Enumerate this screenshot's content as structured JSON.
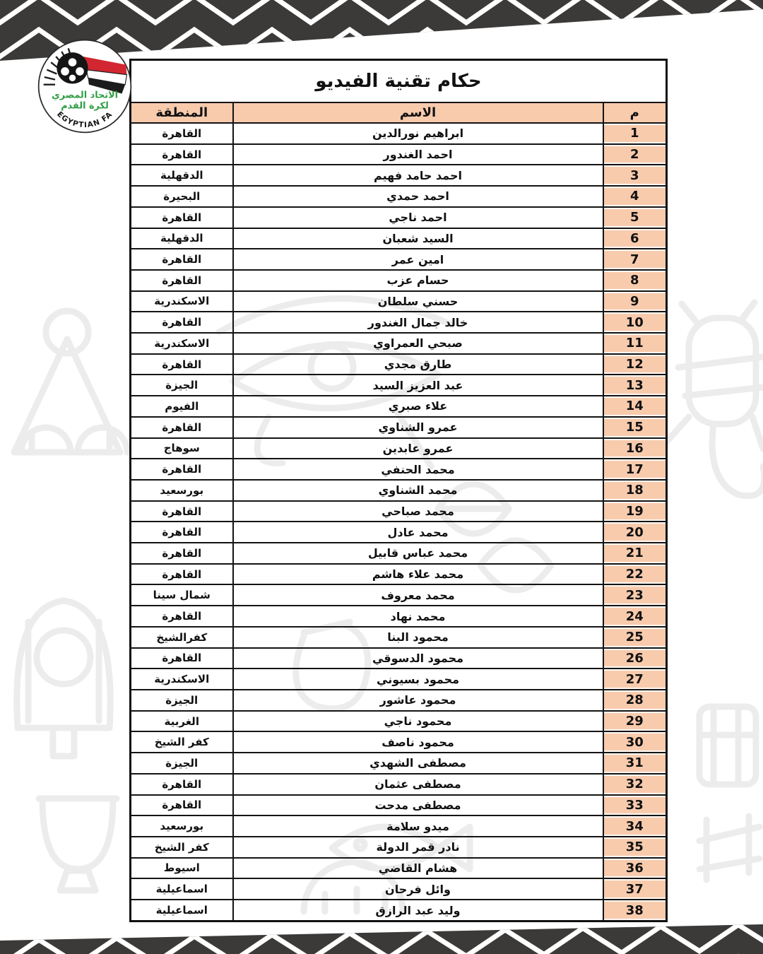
{
  "table": {
    "title": "حكام تقنية الفيديو",
    "columns": {
      "no": "م",
      "name": "الاسم",
      "region": "المنطقة"
    }
  },
  "logo": {
    "arabic_line1": "الاتحاد المصري",
    "arabic_line2": "لكرة القدم",
    "latin": "EGYPTIAN FA"
  },
  "colors": {
    "header_fill": "#f8cbad",
    "band_dark": "#3b3a38",
    "zigzag_white": "#ffffff",
    "logo_green": "#2f9e44",
    "logo_red": "#d22730",
    "border": "#141414",
    "doodle_gray": "#ececec"
  },
  "referees": [
    {
      "no": "1",
      "name": "ابراهيم نورالدين",
      "region": "القاهرة"
    },
    {
      "no": "2",
      "name": "احمد الغندور",
      "region": "القاهرة"
    },
    {
      "no": "3",
      "name": "احمد حامد فهيم",
      "region": "الدقهلية"
    },
    {
      "no": "4",
      "name": "احمد حمدي",
      "region": "البحيرة"
    },
    {
      "no": "5",
      "name": "احمد ناجي",
      "region": "القاهرة"
    },
    {
      "no": "6",
      "name": "السيد شعبان",
      "region": "الدقهلية"
    },
    {
      "no": "7",
      "name": "امين عمر",
      "region": "القاهرة"
    },
    {
      "no": "8",
      "name": "حسام عزب",
      "region": "القاهرة"
    },
    {
      "no": "9",
      "name": "حسني سلطان",
      "region": "الاسكندرية"
    },
    {
      "no": "10",
      "name": "خالد جمال الغندور",
      "region": "القاهرة"
    },
    {
      "no": "11",
      "name": "صبحي العمراوي",
      "region": "الاسكندرية"
    },
    {
      "no": "12",
      "name": "طارق مجدي",
      "region": "القاهرة"
    },
    {
      "no": "13",
      "name": "عبد العزيز السيد",
      "region": "الجيزة"
    },
    {
      "no": "14",
      "name": "علاء صبري",
      "region": "الفيوم"
    },
    {
      "no": "15",
      "name": "عمرو الشناوي",
      "region": "القاهرة"
    },
    {
      "no": "16",
      "name": "عمرو عابدين",
      "region": "سوهاج"
    },
    {
      "no": "17",
      "name": "محمد الحنفي",
      "region": "القاهرة"
    },
    {
      "no": "18",
      "name": "محمد الشناوي",
      "region": "بورسعيد"
    },
    {
      "no": "19",
      "name": "محمد صباحي",
      "region": "القاهرة"
    },
    {
      "no": "20",
      "name": "محمد عادل",
      "region": "القاهرة"
    },
    {
      "no": "21",
      "name": "محمد عباس قابيل",
      "region": "القاهرة"
    },
    {
      "no": "22",
      "name": "محمد علاء هاشم",
      "region": "القاهرة"
    },
    {
      "no": "23",
      "name": "محمد معروف",
      "region": "شمال سينا"
    },
    {
      "no": "24",
      "name": "محمد نهاد",
      "region": "القاهرة"
    },
    {
      "no": "25",
      "name": "محمود البنا",
      "region": "كفرالشيخ"
    },
    {
      "no": "26",
      "name": "محمود الدسوقي",
      "region": "القاهرة"
    },
    {
      "no": "27",
      "name": "محمود بسيوني",
      "region": "الاسكندرية"
    },
    {
      "no": "28",
      "name": "محمود عاشور",
      "region": "الجيزة"
    },
    {
      "no": "29",
      "name": "محمود ناجي",
      "region": "الغربية"
    },
    {
      "no": "30",
      "name": "محمود ناصف",
      "region": "كفر الشيخ"
    },
    {
      "no": "31",
      "name": "مصطفى الشهدي",
      "region": "الجيزة"
    },
    {
      "no": "32",
      "name": "مصطفى عثمان",
      "region": "القاهرة"
    },
    {
      "no": "33",
      "name": "مصطفى مدحت",
      "region": "القاهرة"
    },
    {
      "no": "34",
      "name": "ميدو سلامة",
      "region": "بورسعيد"
    },
    {
      "no": "35",
      "name": "نادر قمر الدولة",
      "region": "كفر الشيخ"
    },
    {
      "no": "36",
      "name": "هشام القاضي",
      "region": "اسيوط"
    },
    {
      "no": "37",
      "name": "وائل فرحان",
      "region": "اسماعيلية"
    },
    {
      "no": "38",
      "name": "وليد عبد الرازق",
      "region": "اسماعيلية"
    }
  ]
}
